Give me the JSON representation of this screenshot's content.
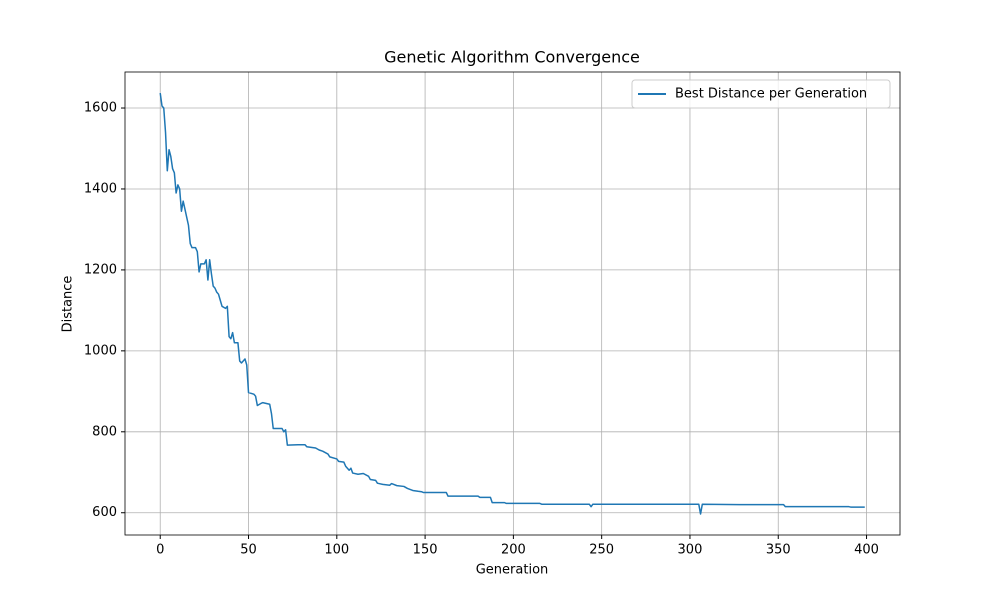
{
  "chart_data": {
    "type": "line",
    "title": "Genetic Algorithm Convergence",
    "x_label": "Generation",
    "y_label": "Distance",
    "x": [
      0,
      1,
      2,
      3,
      4,
      5,
      6,
      7,
      8,
      9,
      10,
      11,
      12,
      13,
      14,
      15,
      16,
      17,
      18,
      20,
      21,
      22,
      23,
      25,
      26,
      27,
      28,
      29,
      30,
      31,
      32,
      33,
      34,
      35,
      37,
      38,
      39,
      40,
      41,
      42,
      44,
      45,
      46,
      48,
      49,
      50,
      53,
      54,
      55,
      57,
      58,
      62,
      63,
      64,
      69,
      70,
      71,
      72,
      78,
      82,
      83,
      88,
      90,
      92,
      95,
      96,
      100,
      101,
      104,
      105,
      107,
      108,
      109,
      112,
      115,
      118,
      119,
      122,
      123,
      126,
      130,
      131,
      134,
      138,
      140,
      143,
      146,
      148,
      149,
      162,
      163,
      180,
      181,
      187,
      188,
      195,
      196,
      215,
      216,
      243,
      244,
      245,
      305,
      306,
      307,
      328,
      353,
      354,
      390,
      391,
      399
    ],
    "series": [
      {
        "name": "Best Distance per Generation",
        "color": "#1f77b4",
        "values": [
          1637,
          1605,
          1600,
          1540,
          1445,
          1497,
          1480,
          1450,
          1440,
          1390,
          1410,
          1400,
          1345,
          1370,
          1350,
          1330,
          1310,
          1265,
          1255,
          1255,
          1245,
          1195,
          1215,
          1215,
          1225,
          1175,
          1225,
          1190,
          1160,
          1155,
          1145,
          1140,
          1125,
          1110,
          1105,
          1110,
          1035,
          1030,
          1045,
          1020,
          1020,
          975,
          970,
          980,
          965,
          897,
          893,
          888,
          865,
          870,
          872,
          868,
          845,
          808,
          808,
          800,
          805,
          767,
          768,
          768,
          763,
          760,
          755,
          752,
          745,
          738,
          733,
          727,
          725,
          715,
          705,
          710,
          698,
          695,
          697,
          690,
          682,
          680,
          673,
          670,
          668,
          672,
          667,
          665,
          660,
          655,
          653,
          652,
          650,
          650,
          641,
          641,
          638,
          638,
          625,
          625,
          623,
          623,
          621,
          621,
          615,
          621,
          621,
          597,
          621,
          620,
          620,
          615,
          615,
          614,
          614
        ]
      }
    ],
    "xlim": [
      -19.95,
      418.95
    ],
    "ylim": [
      545,
      1689
    ],
    "xticks": [
      0,
      50,
      100,
      150,
      200,
      250,
      300,
      350,
      400
    ],
    "yticks": [
      600,
      800,
      1000,
      1200,
      1400,
      1600
    ],
    "grid": true,
    "legend": "upper right"
  }
}
